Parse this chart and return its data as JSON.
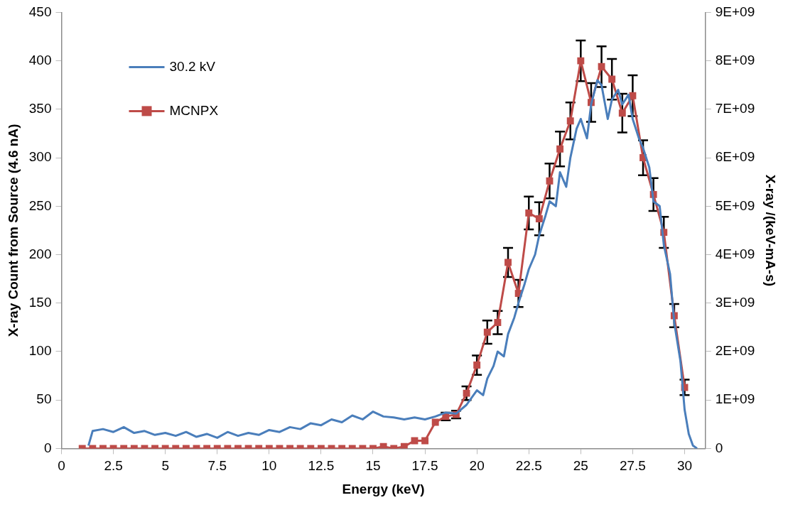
{
  "chart_data": {
    "type": "line",
    "xlabel": "Energy (keV)",
    "ylabel": "X-ray Count from Source (4.6 nA)",
    "y2label": "X-ray /(keV-mA-s)",
    "legend": "top left",
    "line_style": "solid",
    "xlim": [
      0,
      31
    ],
    "xticks": [
      0,
      2.5,
      5,
      7.5,
      10,
      12.5,
      15,
      17.5,
      20,
      22.5,
      25,
      27.5,
      30
    ],
    "ylim": [
      0,
      450
    ],
    "yticks": [
      0,
      50,
      100,
      150,
      200,
      250,
      300,
      350,
      400,
      450
    ],
    "y2lim": [
      0,
      9000000000.0
    ],
    "y2ticks": [
      0,
      {
        "value": 1000000000.0,
        "label": "1E+09"
      },
      {
        "value": 2000000000.0,
        "label": "2E+09"
      },
      {
        "value": 3000000000.0,
        "label": "3E+09"
      },
      {
        "value": 4000000000.0,
        "label": "4E+09"
      },
      {
        "value": 5000000000.0,
        "label": "5E+09"
      },
      {
        "value": 6000000000.0,
        "label": "6E+09"
      },
      {
        "value": 7000000000.0,
        "label": "7E+09"
      },
      {
        "value": 8000000000.0,
        "label": "8E+09"
      },
      {
        "value": 9000000000.0,
        "label": "9E+09"
      }
    ],
    "series": [
      {
        "name": "30.2 kV",
        "color": "#4a7ebb",
        "marker": "none",
        "x": [
          1.3,
          1.5,
          2,
          2.5,
          3,
          3.5,
          4,
          4.5,
          5,
          5.5,
          6,
          6.5,
          7,
          7.5,
          8,
          8.5,
          9,
          9.5,
          10,
          10.5,
          11,
          11.5,
          12,
          12.5,
          13,
          13.5,
          14,
          14.5,
          15,
          15.5,
          16,
          16.5,
          17,
          17.5,
          18,
          18.5,
          19,
          19.5,
          20,
          20.3,
          20.5,
          20.8,
          21,
          21.3,
          21.5,
          21.8,
          22,
          22.3,
          22.5,
          22.8,
          23,
          23.3,
          23.5,
          23.8,
          24,
          24.3,
          24.5,
          24.8,
          25,
          25.3,
          25.5,
          25.8,
          26,
          26.3,
          26.5,
          26.8,
          27,
          27.3,
          27.5,
          27.8,
          28,
          28.3,
          28.5,
          28.8,
          29,
          29.3,
          29.5,
          29.8,
          30,
          30.2,
          30.4,
          30.6
        ],
        "values": [
          3,
          18,
          20,
          17,
          22,
          16,
          18,
          14,
          16,
          13,
          17,
          12,
          15,
          11,
          17,
          13,
          16,
          14,
          19,
          17,
          22,
          20,
          26,
          24,
          30,
          27,
          34,
          30,
          38,
          33,
          32,
          30,
          32,
          30,
          33,
          37,
          36,
          45,
          60,
          55,
          72,
          85,
          100,
          95,
          118,
          135,
          150,
          170,
          185,
          200,
          220,
          240,
          255,
          250,
          285,
          270,
          300,
          330,
          340,
          320,
          355,
          380,
          375,
          340,
          360,
          370,
          355,
          365,
          340,
          320,
          310,
          290,
          255,
          250,
          210,
          180,
          130,
          90,
          40,
          15,
          3,
          0
        ]
      },
      {
        "name": "MCNPX",
        "color": "#be4b48",
        "marker": "square",
        "axis": "y2",
        "x": [
          1,
          1.5,
          2,
          2.5,
          3,
          3.5,
          4,
          4.5,
          5,
          5.5,
          6,
          6.5,
          7,
          7.5,
          8,
          8.5,
          9,
          9.5,
          10,
          10.5,
          11,
          11.5,
          12,
          12.5,
          13,
          13.5,
          14,
          14.5,
          15,
          15.5,
          16,
          16.5,
          17,
          17.5,
          18,
          18.5,
          19,
          19.5,
          20,
          20.5,
          21,
          21.5,
          22,
          22.5,
          23,
          23.5,
          24,
          24.5,
          25,
          25.5,
          26,
          26.5,
          27,
          27.5,
          28,
          28.5,
          29,
          29.5,
          30
        ],
        "values": [
          0,
          0,
          0,
          0,
          0,
          0,
          0,
          0,
          0,
          0,
          0,
          0,
          0,
          0,
          0,
          0,
          0,
          0,
          0,
          0,
          0,
          0,
          0,
          0,
          0,
          0,
          0,
          0,
          0,
          40000000.0,
          0,
          40000000.0,
          160000000.0,
          160000000.0,
          540000000.0,
          660000000.0,
          700000000.0,
          1140000000.0,
          1720000000.0,
          2400000000.0,
          2600000000.0,
          3840000000.0,
          3200000000.0,
          4860000000.0,
          4740000000.0,
          5520000000.0,
          6180000000.0,
          6760000000.0,
          8000000000.0,
          7140000000.0,
          7880000000.0,
          7620000000.0,
          6920000000.0,
          7280000000.0,
          6000000000.0,
          5240000000.0,
          4460000000.0,
          2740000000.0,
          1260000000.0
        ],
        "errors": [
          null,
          null,
          null,
          null,
          null,
          null,
          null,
          null,
          null,
          null,
          null,
          null,
          null,
          null,
          null,
          null,
          null,
          null,
          null,
          null,
          null,
          null,
          null,
          null,
          null,
          null,
          null,
          null,
          null,
          null,
          null,
          null,
          null,
          null,
          null,
          80000000.0,
          80000000.0,
          140000000.0,
          200000000.0,
          240000000.0,
          240000000.0,
          300000000.0,
          280000000.0,
          340000000.0,
          340000000.0,
          360000000.0,
          360000000.0,
          380000000.0,
          420000000.0,
          400000000.0,
          420000000.0,
          420000000.0,
          400000000.0,
          420000000.0,
          360000000.0,
          340000000.0,
          320000000.0,
          240000000.0,
          160000000.0
        ]
      }
    ]
  }
}
